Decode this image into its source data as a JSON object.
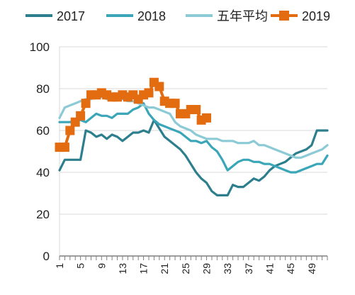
{
  "chart_data": {
    "type": "line",
    "title": "",
    "xlabel": "",
    "ylabel": "",
    "ylim": [
      0,
      100
    ],
    "xlim": [
      1,
      52
    ],
    "yticks": [
      0,
      20,
      40,
      60,
      80,
      100
    ],
    "xticks": [
      1,
      5,
      9,
      13,
      17,
      21,
      25,
      29,
      33,
      37,
      41,
      45,
      49
    ],
    "grid": "horizontal",
    "legend_position": "top",
    "series": [
      {
        "name": "2017",
        "color": "#2e7f8e",
        "marker": "none",
        "x": [
          1,
          2,
          3,
          4,
          5,
          6,
          7,
          8,
          9,
          10,
          11,
          12,
          13,
          14,
          15,
          16,
          17,
          18,
          19,
          20,
          21,
          22,
          23,
          24,
          25,
          26,
          27,
          28,
          29,
          30,
          31,
          32,
          33,
          34,
          35,
          36,
          37,
          38,
          39,
          40,
          41,
          42,
          43,
          44,
          45,
          46,
          47,
          48,
          49,
          50,
          51,
          52
        ],
        "values": [
          41,
          46,
          46,
          46,
          46,
          60,
          59,
          57,
          58,
          56,
          58,
          57,
          55,
          57,
          59,
          59,
          60,
          59,
          65,
          61,
          57,
          55,
          53,
          51,
          48,
          44,
          40,
          37,
          35,
          31,
          29,
          29,
          29,
          34,
          33,
          33,
          35,
          37,
          36,
          38,
          41,
          43,
          44,
          45,
          47,
          49,
          50,
          51,
          53,
          60,
          60,
          60
        ]
      },
      {
        "name": "2018",
        "color": "#3aa6b8",
        "marker": "none",
        "x": [
          1,
          2,
          3,
          4,
          5,
          6,
          7,
          8,
          9,
          10,
          11,
          12,
          13,
          14,
          15,
          16,
          17,
          18,
          19,
          20,
          21,
          22,
          23,
          24,
          25,
          26,
          27,
          28,
          29,
          30,
          31,
          32,
          33,
          34,
          35,
          36,
          37,
          38,
          39,
          40,
          41,
          42,
          43,
          44,
          45,
          46,
          47,
          48,
          49,
          50,
          51,
          52
        ],
        "values": [
          64,
          64,
          64,
          65,
          65,
          64,
          66,
          68,
          67,
          67,
          66,
          68,
          68,
          68,
          70,
          71,
          73,
          68,
          65,
          63,
          62,
          61,
          60,
          59,
          57,
          55,
          55,
          54,
          55,
          52,
          50,
          46,
          41,
          43,
          45,
          46,
          46,
          45,
          45,
          44,
          44,
          43,
          42,
          41,
          40,
          40,
          41,
          42,
          43,
          44,
          44,
          48
        ]
      },
      {
        "name": "五年平均",
        "color": "#8ccbd6",
        "marker": "none",
        "x": [
          1,
          2,
          3,
          4,
          5,
          6,
          7,
          8,
          9,
          10,
          11,
          12,
          13,
          14,
          15,
          16,
          17,
          18,
          19,
          20,
          21,
          22,
          23,
          24,
          25,
          26,
          27,
          28,
          29,
          30,
          31,
          32,
          33,
          34,
          35,
          36,
          37,
          38,
          39,
          40,
          41,
          42,
          43,
          44,
          45,
          46,
          47,
          48,
          49,
          50,
          51,
          52
        ],
        "values": [
          66,
          71,
          72,
          73,
          74,
          75,
          75,
          76,
          76,
          75,
          75,
          75,
          75,
          74,
          74,
          73,
          72,
          71,
          71,
          70,
          69,
          68,
          64,
          62,
          61,
          60,
          58,
          57,
          56,
          56,
          56,
          55,
          55,
          55,
          54,
          54,
          54,
          55,
          53,
          53,
          52,
          51,
          50,
          49,
          48,
          47,
          47,
          48,
          49,
          50,
          51,
          53
        ]
      },
      {
        "name": "2019",
        "color": "#e46c10",
        "marker": "square",
        "x": [
          1,
          2,
          3,
          4,
          5,
          6,
          7,
          8,
          9,
          10,
          11,
          12,
          13,
          14,
          15,
          16,
          17,
          18,
          19,
          20,
          21,
          22,
          23,
          24,
          25,
          26,
          27,
          28,
          29
        ],
        "values": [
          52,
          52,
          60,
          64,
          67,
          73,
          77,
          77,
          78,
          77,
          76,
          76,
          77,
          76,
          77,
          75,
          77,
          78,
          83,
          81,
          74,
          73,
          73,
          68,
          68,
          70,
          70,
          65,
          66
        ]
      }
    ]
  }
}
